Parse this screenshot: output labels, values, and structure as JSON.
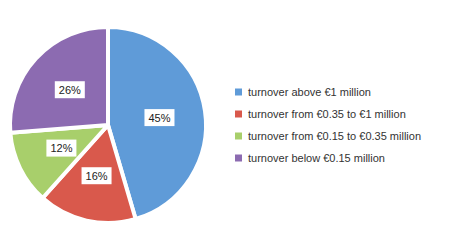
{
  "chart_data": {
    "type": "pie",
    "categories": [
      "turnover above €1 million",
      "turnover from €0.35 to €1 million",
      "turnover from €0.15 to €0.35 million",
      "turnover below €0.15 million"
    ],
    "values": [
      45,
      16,
      12,
      26
    ],
    "value_labels": [
      "45%",
      "16%",
      "12%",
      "26%"
    ],
    "colors": [
      "#5f9bd8",
      "#d9594c",
      "#a8cf6b",
      "#8c6bb1"
    ],
    "data_labels": true,
    "legend": "right"
  }
}
